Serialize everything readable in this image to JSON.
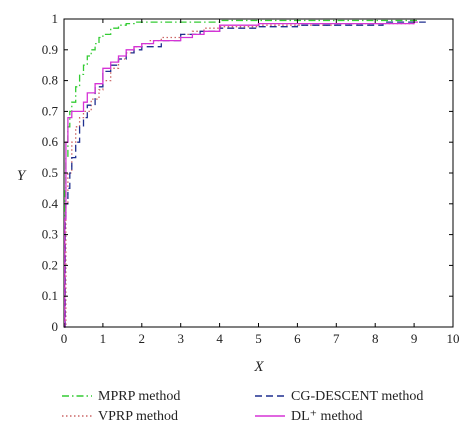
{
  "chart_data": {
    "type": "line",
    "title": "",
    "xlabel": "X",
    "ylabel": "Y",
    "xlim": [
      0,
      10
    ],
    "ylim": [
      0,
      1
    ],
    "xticks": [
      "0",
      "1",
      "2",
      "3",
      "4",
      "5",
      "6",
      "7",
      "8",
      "9",
      "10"
    ],
    "yticks": [
      "0",
      "0.1",
      "0.2",
      "0.3",
      "0.4",
      "0.5",
      "0.6",
      "0.7",
      "0.8",
      "0.9",
      "1"
    ],
    "grid": false,
    "legend_position": "bottom",
    "series": [
      {
        "name": "MPRP method",
        "color": "#33cc33",
        "dash": "dash-dot",
        "x": [
          0,
          0.02,
          0.05,
          0.1,
          0.15,
          0.2,
          0.3,
          0.4,
          0.5,
          0.6,
          0.7,
          0.8,
          0.9,
          1.0,
          1.2,
          1.4,
          1.6,
          1.8,
          2.0,
          2.5,
          3.0,
          4.0,
          5.0,
          6.0,
          7.0,
          8.0,
          9.0,
          9.1
        ],
        "y": [
          0,
          0.45,
          0.55,
          0.65,
          0.7,
          0.73,
          0.78,
          0.82,
          0.85,
          0.88,
          0.9,
          0.92,
          0.94,
          0.95,
          0.97,
          0.98,
          0.985,
          0.99,
          0.99,
          0.99,
          0.99,
          0.995,
          0.995,
          0.995,
          0.995,
          0.995,
          0.995,
          0.995
        ]
      },
      {
        "name": "VPRP method",
        "color": "#cc6666",
        "dash": "dotted",
        "x": [
          0,
          0.05,
          0.1,
          0.2,
          0.3,
          0.4,
          0.5,
          0.7,
          0.9,
          1.0,
          1.2,
          1.4,
          1.6,
          1.8,
          2.0,
          2.2,
          2.5,
          3.0,
          3.3,
          3.6,
          4.0,
          5.0,
          6.0,
          7.0,
          8.0,
          9.0
        ],
        "y": [
          0,
          0.4,
          0.5,
          0.6,
          0.65,
          0.68,
          0.7,
          0.74,
          0.77,
          0.8,
          0.84,
          0.87,
          0.89,
          0.91,
          0.92,
          0.93,
          0.94,
          0.95,
          0.96,
          0.97,
          0.975,
          0.98,
          0.98,
          0.985,
          0.985,
          0.99
        ]
      },
      {
        "name": "CG-DESCENT method",
        "color": "#1f2f8f",
        "dash": "dashed",
        "x": [
          0,
          0.03,
          0.05,
          0.1,
          0.15,
          0.2,
          0.3,
          0.4,
          0.5,
          0.6,
          0.8,
          1.0,
          1.2,
          1.4,
          1.6,
          1.8,
          2.0,
          2.5,
          3.0,
          3.5,
          4.0,
          5.0,
          6.0,
          7.0,
          8.0,
          8.2,
          9.0,
          9.3
        ],
        "y": [
          0,
          0.35,
          0.4,
          0.45,
          0.5,
          0.55,
          0.6,
          0.65,
          0.68,
          0.72,
          0.78,
          0.83,
          0.85,
          0.87,
          0.89,
          0.9,
          0.91,
          0.93,
          0.95,
          0.96,
          0.97,
          0.975,
          0.98,
          0.98,
          0.98,
          0.99,
          0.99,
          0.99
        ]
      },
      {
        "name": "DL⁺ method",
        "color": "#d633d6",
        "dash": "solid",
        "x": [
          0,
          0.02,
          0.05,
          0.1,
          0.2,
          0.3,
          0.5,
          0.6,
          0.8,
          1.0,
          1.2,
          1.4,
          1.6,
          1.8,
          2.0,
          2.3,
          2.7,
          3.0,
          3.3,
          3.6,
          4.0,
          4.5,
          5.0,
          6.0,
          7.0,
          8.0,
          9.0,
          9.1
        ],
        "y": [
          0,
          0.35,
          0.6,
          0.68,
          0.7,
          0.7,
          0.73,
          0.76,
          0.79,
          0.84,
          0.86,
          0.88,
          0.9,
          0.91,
          0.92,
          0.93,
          0.93,
          0.94,
          0.95,
          0.96,
          0.98,
          0.98,
          0.985,
          0.985,
          0.985,
          0.985,
          0.99,
          0.99
        ]
      }
    ]
  }
}
